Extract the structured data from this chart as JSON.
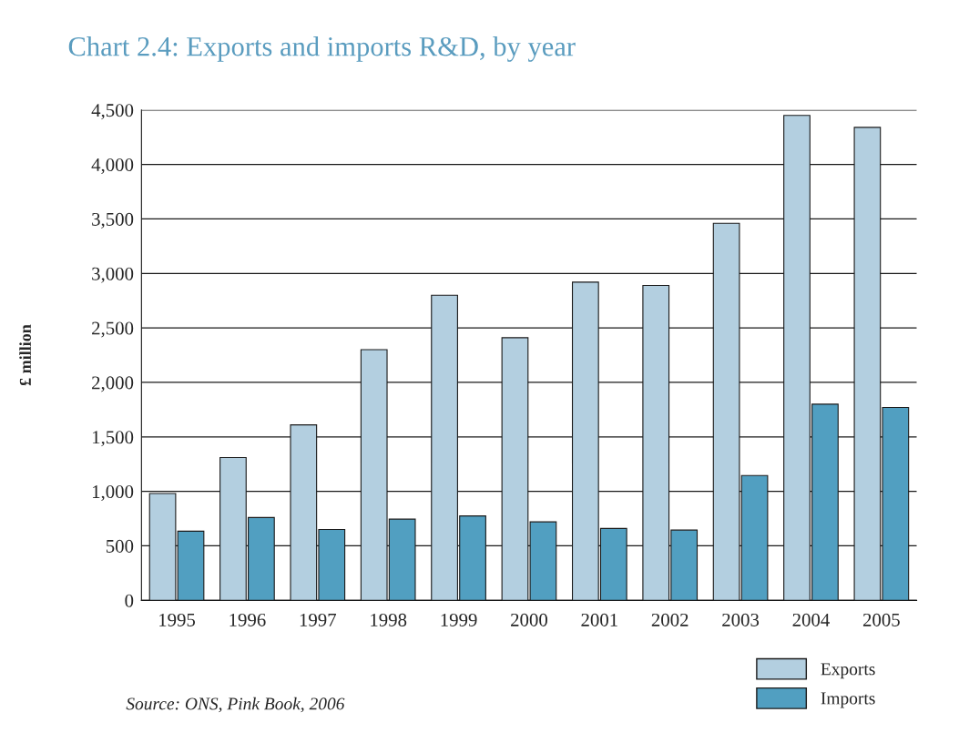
{
  "chart_data": {
    "type": "bar",
    "title": "Chart 2.4: Exports and imports R&D, by year",
    "ylabel": "£ million",
    "categories": [
      "1995",
      "1996",
      "1997",
      "1998",
      "1999",
      "2000",
      "2001",
      "2002",
      "2003",
      "2004",
      "2005"
    ],
    "series": [
      {
        "name": "Exports",
        "color": "#b3cfe0",
        "values": [
          980,
          1310,
          1610,
          2300,
          2800,
          2410,
          2920,
          2890,
          3460,
          4450,
          4340
        ]
      },
      {
        "name": "Imports",
        "color": "#519fc1",
        "values": [
          635,
          760,
          650,
          745,
          775,
          720,
          660,
          645,
          1145,
          1800,
          1770
        ]
      }
    ],
    "ylim": [
      0,
      4500
    ],
    "yticks": [
      {
        "value": 0,
        "label": "0"
      },
      {
        "value": 500,
        "label": "500"
      },
      {
        "value": 1000,
        "label": "1,000"
      },
      {
        "value": 1500,
        "label": "1,500"
      },
      {
        "value": 2000,
        "label": "2,000"
      },
      {
        "value": 2500,
        "label": "2,500"
      },
      {
        "value": 3000,
        "label": "3,000"
      },
      {
        "value": 3500,
        "label": "3,500"
      },
      {
        "value": 4000,
        "label": "4,000"
      },
      {
        "value": 4500,
        "label": "4,500"
      }
    ],
    "grid": "y",
    "legend": "bottom right",
    "annotations": [
      "Source: ONS, Pink Book, 2006"
    ]
  }
}
